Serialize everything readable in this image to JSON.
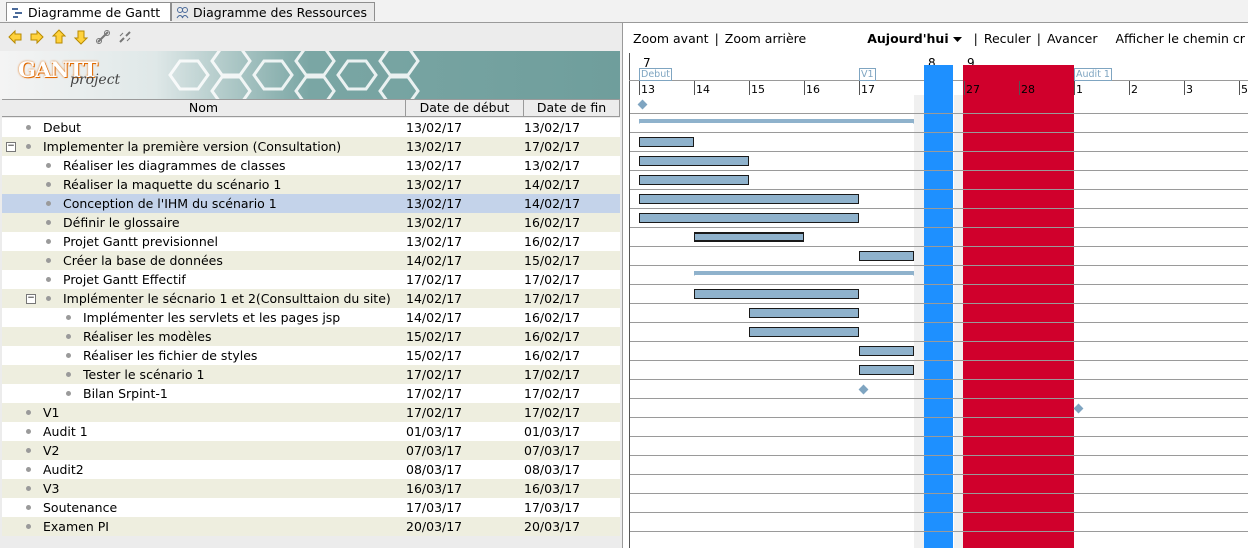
{
  "tabs": [
    {
      "label": "Diagramme de Gantt",
      "icon": "gantt-tab-icon",
      "active": true
    },
    {
      "label": "Diagramme des Ressources",
      "icon": "resources-tab-icon",
      "active": false
    }
  ],
  "toolbar_icons": [
    "arrow-left-icon",
    "arrow-right-icon",
    "arrow-up-icon",
    "arrow-down-icon",
    "link-icon",
    "unlink-icon"
  ],
  "logo": {
    "text_main": "GANTT",
    "text_sub": "project"
  },
  "table": {
    "headers": {
      "name": "Nom",
      "start": "Date de début",
      "end": "Date de fin"
    },
    "rows": [
      {
        "name": "Debut",
        "start": "13/02/17",
        "end": "13/02/17",
        "level": 0,
        "toggle": ""
      },
      {
        "name": "Implementer la première version (Consultation)",
        "start": "13/02/17",
        "end": "17/02/17",
        "level": 0,
        "toggle": "−"
      },
      {
        "name": "Réaliser les diagrammes de classes",
        "start": "13/02/17",
        "end": "13/02/17",
        "level": 1,
        "toggle": ""
      },
      {
        "name": "Réaliser la maquette du scénario 1",
        "start": "13/02/17",
        "end": "14/02/17",
        "level": 1,
        "toggle": ""
      },
      {
        "name": "Conception de l'IHM du scénario 1",
        "start": "13/02/17",
        "end": "14/02/17",
        "level": 1,
        "toggle": "",
        "selected": true
      },
      {
        "name": "Définir le glossaire",
        "start": "13/02/17",
        "end": "16/02/17",
        "level": 1,
        "toggle": ""
      },
      {
        "name": "Projet Gantt previsionnel",
        "start": "13/02/17",
        "end": "16/02/17",
        "level": 1,
        "toggle": ""
      },
      {
        "name": "Créer la base de données",
        "start": "14/02/17",
        "end": "15/02/17",
        "level": 1,
        "toggle": ""
      },
      {
        "name": "Projet Gantt Effectif",
        "start": "17/02/17",
        "end": "17/02/17",
        "level": 1,
        "toggle": ""
      },
      {
        "name": "Implémenter le sécnario 1 et 2(Consulttaion du site)",
        "start": "14/02/17",
        "end": "17/02/17",
        "level": 1,
        "toggle": "−"
      },
      {
        "name": "Implémenter les servlets et les pages jsp",
        "start": "14/02/17",
        "end": "16/02/17",
        "level": 2,
        "toggle": ""
      },
      {
        "name": "Réaliser les modèles",
        "start": "15/02/17",
        "end": "16/02/17",
        "level": 2,
        "toggle": ""
      },
      {
        "name": "Réaliser les fichier de styles",
        "start": "15/02/17",
        "end": "16/02/17",
        "level": 2,
        "toggle": ""
      },
      {
        "name": "Tester le scénario 1",
        "start": "17/02/17",
        "end": "17/02/17",
        "level": 2,
        "toggle": ""
      },
      {
        "name": "Bilan Srpint-1",
        "start": "17/02/17",
        "end": "17/02/17",
        "level": 2,
        "toggle": ""
      },
      {
        "name": "V1",
        "start": "17/02/17",
        "end": "17/02/17",
        "level": 0,
        "toggle": ""
      },
      {
        "name": "Audit 1",
        "start": "01/03/17",
        "end": "01/03/17",
        "level": 0,
        "toggle": ""
      },
      {
        "name": "V2",
        "start": "07/03/17",
        "end": "07/03/17",
        "level": 0,
        "toggle": ""
      },
      {
        "name": "Audit2",
        "start": "08/03/17",
        "end": "08/03/17",
        "level": 0,
        "toggle": ""
      },
      {
        "name": "V3",
        "start": "16/03/17",
        "end": "16/03/17",
        "level": 0,
        "toggle": ""
      },
      {
        "name": "Soutenance",
        "start": "17/03/17",
        "end": "17/03/17",
        "level": 0,
        "toggle": ""
      },
      {
        "name": "Examen PI",
        "start": "20/03/17",
        "end": "20/03/17",
        "level": 0,
        "toggle": ""
      }
    ]
  },
  "gantt_toolbar": {
    "zoom_in": "Zoom avant",
    "sep1": "|",
    "zoom_out": "Zoom arrière",
    "today": "Aujourd'hui",
    "sep2": "|",
    "back": "Reculer",
    "sep3": "|",
    "forward": "Avancer",
    "critical_path": "Afficher le chemin cr"
  },
  "gantt_header": {
    "weeks": [
      "7",
      "8",
      "9"
    ],
    "days": [
      "13",
      "14",
      "15",
      "16",
      "17",
      "27",
      "28",
      "1",
      "2",
      "3",
      "5"
    ],
    "milestone_labels": [
      "Debut",
      "V1",
      "Audit 1"
    ]
  },
  "colors": {
    "bar": "#8fb2cc",
    "today": "#1e90ff",
    "holiday": "#d0002c",
    "weekend": "#f0f0f0",
    "row_alt": "#eeeedf",
    "selected": "#c4d3ea"
  }
}
